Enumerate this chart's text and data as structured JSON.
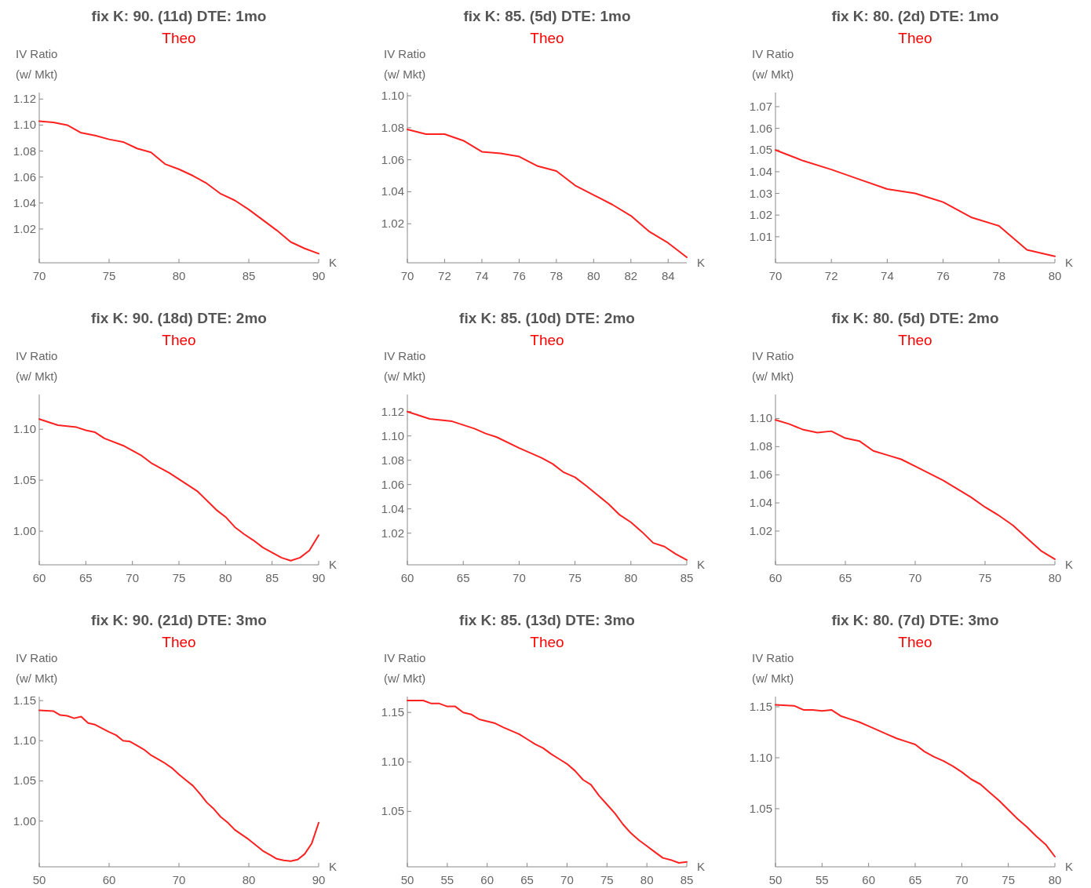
{
  "chart_data": [
    {
      "type": "line",
      "title": "fix K: 90. (11d) DTE: 1mo",
      "subtitle": "Theo",
      "ylabel": "IV Ratio (w/ Mkt)",
      "xlabel": "K",
      "xlim": [
        70,
        90
      ],
      "xticks": [
        70,
        75,
        80,
        85,
        90
      ],
      "ylim": [
        0.994,
        1.125
      ],
      "yticks": [
        {
          "value": 1.02,
          "label": "1.02"
        },
        {
          "value": 1.04,
          "label": "1.04"
        },
        {
          "value": 1.06,
          "label": "1.06"
        },
        {
          "value": 1.08,
          "label": "1.08"
        },
        {
          "value": 1.1,
          "label": "1.10"
        },
        {
          "value": 1.12,
          "label": "1.12"
        }
      ],
      "grid": false,
      "marker": "none",
      "series": [
        {
          "color": "#ff2020",
          "x": [
            70,
            71,
            72,
            73,
            74,
            75,
            76,
            77,
            78,
            79,
            80,
            81,
            82,
            83,
            84,
            85,
            86,
            87,
            88,
            89,
            90
          ],
          "values": [
            1.103,
            1.102,
            1.1,
            1.094,
            1.092,
            1.089,
            1.087,
            1.082,
            1.079,
            1.07,
            1.066,
            1.061,
            1.055,
            1.047,
            1.042,
            1.035,
            1.027,
            1.019,
            1.01,
            1.005,
            1.001
          ]
        }
      ]
    },
    {
      "type": "line",
      "title": "fix K: 85. (5d) DTE: 1mo",
      "subtitle": "Theo",
      "ylabel": "IV Ratio (w/ Mkt)",
      "xlabel": "K",
      "xlim": [
        70,
        85
      ],
      "xticks": [
        70,
        72,
        74,
        76,
        78,
        80,
        82,
        84
      ],
      "ylim": [
        0.9956,
        1.102
      ],
      "yticks": [
        {
          "value": 1.02,
          "label": "1.02"
        },
        {
          "value": 1.04,
          "label": "1.04"
        },
        {
          "value": 1.06,
          "label": "1.06"
        },
        {
          "value": 1.08,
          "label": "1.08"
        },
        {
          "value": 1.1,
          "label": "1.10"
        }
      ],
      "grid": false,
      "marker": "none",
      "series": [
        {
          "color": "#ff2020",
          "x": [
            70,
            71,
            72,
            73,
            74,
            75,
            76,
            77,
            78,
            79,
            80,
            81,
            82,
            83,
            84,
            85
          ],
          "values": [
            1.079,
            1.076,
            1.076,
            1.072,
            1.065,
            1.064,
            1.062,
            1.056,
            1.053,
            1.044,
            1.038,
            1.032,
            1.025,
            1.015,
            1.008,
            0.999
          ]
        }
      ]
    },
    {
      "type": "line",
      "title": "fix K: 80. (2d) DTE: 1mo",
      "subtitle": "Theo",
      "ylabel": "IV Ratio (w/ Mkt)",
      "xlabel": "K",
      "xlim": [
        70,
        80
      ],
      "xticks": [
        70,
        72,
        74,
        76,
        78,
        80
      ],
      "ylim": [
        0.998,
        1.0765
      ],
      "yticks": [
        {
          "value": 1.01,
          "label": "1.01"
        },
        {
          "value": 1.02,
          "label": "1.02"
        },
        {
          "value": 1.03,
          "label": "1.03"
        },
        {
          "value": 1.04,
          "label": "1.04"
        },
        {
          "value": 1.05,
          "label": "1.05"
        },
        {
          "value": 1.06,
          "label": "1.06"
        },
        {
          "value": 1.07,
          "label": "1.07"
        }
      ],
      "grid": false,
      "marker": "none",
      "series": [
        {
          "color": "#ff2020",
          "x": [
            70,
            71,
            72,
            73,
            74,
            75,
            76,
            77,
            78,
            79,
            80
          ],
          "values": [
            1.05,
            1.045,
            1.041,
            1.0365,
            1.032,
            1.03,
            1.026,
            1.019,
            1.015,
            1.004,
            1.001
          ]
        }
      ]
    },
    {
      "type": "line",
      "title": "fix K: 90. (18d) DTE: 2mo",
      "subtitle": "Theo",
      "ylabel": "IV Ratio (w/ Mkt)",
      "xlabel": "K",
      "xlim": [
        60,
        90
      ],
      "xticks": [
        60,
        65,
        70,
        75,
        80,
        85,
        90
      ],
      "ylim": [
        0.967,
        1.134
      ],
      "yticks": [
        {
          "value": 1,
          "label": "1.00"
        },
        {
          "value": 1.05,
          "label": "1.05"
        },
        {
          "value": 1.1,
          "label": "1.10"
        }
      ],
      "grid": false,
      "marker": "none",
      "series": [
        {
          "color": "#ff2020",
          "x": [
            60,
            62,
            64,
            65,
            66,
            67,
            69,
            71,
            72,
            74,
            76,
            77,
            79,
            80,
            81,
            82,
            83,
            84,
            86,
            87,
            88,
            89,
            90
          ],
          "values": [
            1.11,
            1.104,
            1.102,
            1.099,
            1.097,
            1.091,
            1.084,
            1.074,
            1.067,
            1.057,
            1.045,
            1.039,
            1.021,
            1.014,
            1.004,
            0.997,
            0.991,
            0.984,
            0.974,
            0.971,
            0.974,
            0.981,
            0.996
          ]
        }
      ]
    },
    {
      "type": "line",
      "title": "fix K: 85. (10d) DTE: 2mo",
      "subtitle": "Theo",
      "ylabel": "IV Ratio (w/ Mkt)",
      "xlabel": "K",
      "xlim": [
        60,
        85
      ],
      "xticks": [
        60,
        65,
        70,
        75,
        80,
        85
      ],
      "ylim": [
        0.994,
        1.134
      ],
      "yticks": [
        {
          "value": 1.02,
          "label": "1.02"
        },
        {
          "value": 1.04,
          "label": "1.04"
        },
        {
          "value": 1.06,
          "label": "1.06"
        },
        {
          "value": 1.08,
          "label": "1.08"
        },
        {
          "value": 1.1,
          "label": "1.10"
        },
        {
          "value": 1.12,
          "label": "1.12"
        }
      ],
      "grid": false,
      "marker": "none",
      "series": [
        {
          "color": "#ff2020",
          "x": [
            60,
            62,
            64,
            66,
            67,
            68,
            70,
            72,
            73,
            74,
            75,
            76,
            78,
            79,
            80,
            81,
            82,
            83,
            84,
            85
          ],
          "values": [
            1.12,
            1.114,
            1.112,
            1.106,
            1.102,
            1.099,
            1.09,
            1.082,
            1.077,
            1.07,
            1.066,
            1.059,
            1.044,
            1.035,
            1.029,
            1.021,
            1.012,
            1.009,
            1.003,
            0.998
          ]
        }
      ]
    },
    {
      "type": "line",
      "title": "fix K: 80. (5d) DTE: 2mo",
      "subtitle": "Theo",
      "ylabel": "IV Ratio (w/ Mkt)",
      "xlabel": "K",
      "xlim": [
        60,
        80
      ],
      "xticks": [
        60,
        65,
        70,
        75,
        80
      ],
      "ylim": [
        0.996,
        1.117
      ],
      "yticks": [
        {
          "value": 1.02,
          "label": "1.02"
        },
        {
          "value": 1.04,
          "label": "1.04"
        },
        {
          "value": 1.06,
          "label": "1.06"
        },
        {
          "value": 1.08,
          "label": "1.08"
        },
        {
          "value": 1.1,
          "label": "1.10"
        }
      ],
      "grid": false,
      "marker": "none",
      "series": [
        {
          "color": "#ff2020",
          "x": [
            60,
            61,
            62,
            63,
            64,
            65,
            66,
            67,
            68,
            69,
            70,
            72,
            74,
            75,
            76,
            77,
            78,
            79,
            80
          ],
          "values": [
            1.099,
            1.096,
            1.092,
            1.09,
            1.091,
            1.086,
            1.084,
            1.077,
            1.074,
            1.071,
            1.066,
            1.056,
            1.044,
            1.037,
            1.031,
            1.024,
            1.015,
            1.006,
            1.0
          ]
        }
      ]
    },
    {
      "type": "line",
      "title": "fix K: 90. (21d) DTE: 3mo",
      "subtitle": "Theo",
      "ylabel": "IV Ratio (w/ Mkt)",
      "xlabel": "K",
      "xlim": [
        50,
        90
      ],
      "xticks": [
        50,
        60,
        70,
        80,
        90
      ],
      "ylim": [
        0.943,
        1.155
      ],
      "yticks": [
        {
          "value": 1,
          "label": "1.00"
        },
        {
          "value": 1.05,
          "label": "1.05"
        },
        {
          "value": 1.1,
          "label": "1.10"
        },
        {
          "value": 1.15,
          "label": "1.15"
        }
      ],
      "grid": false,
      "marker": "none",
      "series": [
        {
          "color": "#ff2020",
          "x": [
            50,
            52,
            53,
            54,
            55,
            56,
            57,
            58,
            60,
            61,
            62,
            63,
            64,
            65,
            66,
            68,
            69,
            70,
            71,
            72,
            73,
            74,
            75,
            76,
            77,
            78,
            80,
            82,
            83,
            84,
            85,
            86,
            87,
            88,
            89,
            90
          ],
          "values": [
            1.138,
            1.137,
            1.132,
            1.131,
            1.128,
            1.13,
            1.122,
            1.12,
            1.111,
            1.107,
            1.1,
            1.099,
            1.094,
            1.089,
            1.082,
            1.072,
            1.066,
            1.058,
            1.051,
            1.044,
            1.034,
            1.023,
            1.015,
            1.005,
            0.998,
            0.989,
            0.977,
            0.963,
            0.958,
            0.953,
            0.951,
            0.95,
            0.952,
            0.959,
            0.972,
            0.998
          ]
        }
      ]
    },
    {
      "type": "line",
      "title": "fix K: 85. (13d) DTE: 3mo",
      "subtitle": "Theo",
      "ylabel": "IV Ratio (w/ Mkt)",
      "xlabel": "K",
      "xlim": [
        50,
        85
      ],
      "xticks": [
        50,
        55,
        60,
        65,
        70,
        75,
        80,
        85
      ],
      "ylim": [
        0.994,
        1.166
      ],
      "yticks": [
        {
          "value": 1.05,
          "label": "1.05"
        },
        {
          "value": 1.1,
          "label": "1.10"
        },
        {
          "value": 1.15,
          "label": "1.15"
        }
      ],
      "grid": false,
      "marker": "none",
      "series": [
        {
          "color": "#ff2020",
          "x": [
            50,
            52,
            53,
            54,
            55,
            56,
            57,
            58,
            59,
            60,
            61,
            62,
            64,
            65,
            66,
            67,
            68,
            69,
            70,
            71,
            72,
            73,
            74,
            75,
            76,
            77,
            78,
            79,
            80,
            81,
            82,
            83,
            84,
            85
          ],
          "values": [
            1.162,
            1.162,
            1.159,
            1.159,
            1.156,
            1.156,
            1.15,
            1.148,
            1.143,
            1.141,
            1.139,
            1.135,
            1.128,
            1.123,
            1.118,
            1.114,
            1.108,
            1.103,
            1.098,
            1.091,
            1.082,
            1.077,
            1.066,
            1.057,
            1.048,
            1.037,
            1.028,
            1.021,
            1.015,
            1.009,
            1.003,
            1.001,
            0.998,
            0.999
          ]
        }
      ]
    },
    {
      "type": "line",
      "title": "fix K: 80. (7d) DTE: 3mo",
      "subtitle": "Theo",
      "ylabel": "IV Ratio (w/ Mkt)",
      "xlabel": "K",
      "xlim": [
        50,
        80
      ],
      "xticks": [
        50,
        55,
        60,
        65,
        70,
        75,
        80
      ],
      "ylim": [
        0.993,
        1.16
      ],
      "yticks": [
        {
          "value": 1.05,
          "label": "1.05"
        },
        {
          "value": 1.1,
          "label": "1.10"
        },
        {
          "value": 1.15,
          "label": "1.15"
        }
      ],
      "grid": false,
      "marker": "none",
      "series": [
        {
          "color": "#ff2020",
          "x": [
            50,
            52,
            53,
            54,
            55,
            56,
            57,
            58,
            59,
            60,
            61,
            62,
            63,
            64,
            65,
            66,
            67,
            68,
            69,
            70,
            71,
            72,
            73,
            74,
            75,
            76,
            77,
            78,
            79,
            80
          ],
          "values": [
            1.152,
            1.151,
            1.147,
            1.147,
            1.146,
            1.147,
            1.141,
            1.138,
            1.135,
            1.131,
            1.127,
            1.123,
            1.119,
            1.116,
            1.113,
            1.106,
            1.101,
            1.097,
            1.092,
            1.086,
            1.079,
            1.074,
            1.066,
            1.058,
            1.049,
            1.04,
            1.032,
            1.023,
            1.015,
            1.003
          ]
        }
      ]
    }
  ]
}
